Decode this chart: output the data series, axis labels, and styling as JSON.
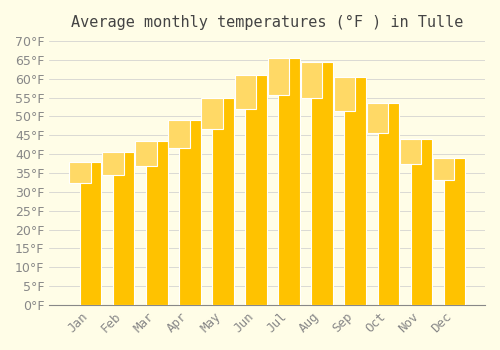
{
  "title": "Average monthly temperatures (°F ) in Tulle",
  "months": [
    "Jan",
    "Feb",
    "Mar",
    "Apr",
    "May",
    "Jun",
    "Jul",
    "Aug",
    "Sep",
    "Oct",
    "Nov",
    "Dec"
  ],
  "values": [
    38,
    40.5,
    43.5,
    49,
    55,
    61,
    65.5,
    64.5,
    60.5,
    53.5,
    44,
    39
  ],
  "bar_color_top": "#FFC200",
  "bar_color_bottom": "#FFD966",
  "bar_edge_color": "#FFFFFF",
  "ylim": [
    0,
    70
  ],
  "yticks": [
    0,
    5,
    10,
    15,
    20,
    25,
    30,
    35,
    40,
    45,
    50,
    55,
    60,
    65,
    70
  ],
  "background_color": "#FFFDE7",
  "grid_color": "#CCCCCC",
  "title_fontsize": 11,
  "tick_fontsize": 9,
  "title_color": "#444444",
  "tick_color": "#888888"
}
